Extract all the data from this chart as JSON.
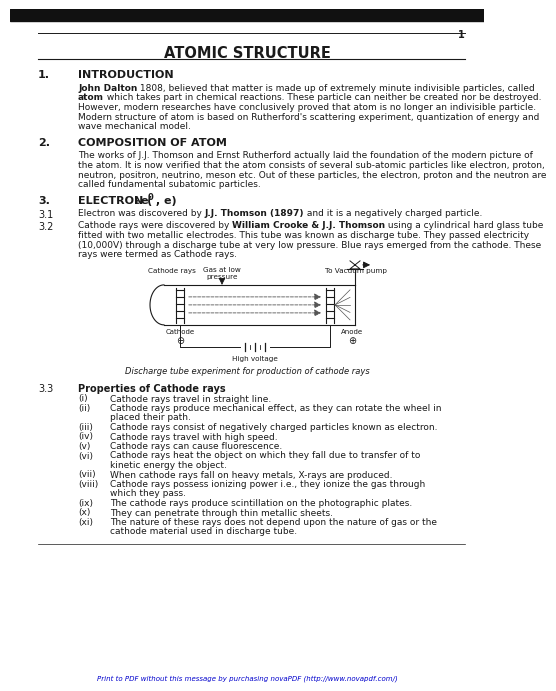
{
  "title": "ATOMIC STRUCTURE",
  "page_number": "1",
  "bg_color": "#ffffff",
  "text_color": "#1a1a1a",
  "sec1_heading": "INTRODUCTION",
  "sec1_body": [
    [
      "bold",
      "John Dalton",
      "normal",
      " 1808, believed that matter is made up of extremely minute indivisible particles, called"
    ],
    [
      "bold",
      "atom",
      "normal",
      " which takes part in chemical reactions. These particle can neither be created nor be destroyed."
    ],
    [
      "normal",
      "However, modern researches have conclusively proved that atom is no longer an indivisible particle."
    ],
    [
      "normal",
      "Modern structure of atom is based on Rutherford's scattering experiment, quantization of energy and"
    ],
    [
      "normal",
      "wave mechanical model."
    ]
  ],
  "sec2_heading": "COMPOSITION OF ATOM",
  "sec2_body": [
    "The works of J.J. Thomson and Ernst Rutherford actually laid the foundation of the modern picture of",
    "the atom. It is now verified that the atom consists of several sub-atomic particles like electron, proton,",
    "neutron, positron, neutrino, meson etc. Out of these particles, the electron, proton and the neutron are",
    "called fundamental subatomic particles."
  ],
  "sec31_text": "Electron was discovered by ",
  "sec31_bold": "J.J. Thomson (1897)",
  "sec31_rest": " and it is a negatively charged particle.",
  "sec32_lines": [
    [
      [
        "bold",
        "William Crooke & J.J. Thomson"
      ],
      [
        "normal",
        " using a cylindrical hard glass tube"
      ]
    ],
    [
      [
        "normal",
        "fitted with two metallic electrodes. This tube was known as discharge tube. They passed electricity"
      ]
    ],
    [
      [
        "normal",
        "(10,000V) through a discharge tube at very low pressure. Blue rays emerged from the cathode. These"
      ]
    ],
    [
      [
        "normal",
        "rays were termed as Cathode rays."
      ]
    ]
  ],
  "sec32_prefix": "Cathode rays were discovered by ",
  "diagram_caption": "Discharge tube experiment for production of cathode rays",
  "sec33_heading": "Properties of Cathode rays",
  "sec33_items": [
    [
      "(i)",
      "Cathode rays travel in straight line."
    ],
    [
      "(ii)",
      "Cathode rays produce mechanical effect, as they can rotate the wheel placed in their path."
    ],
    [
      "(iii)",
      "Cathode rays consist of negatively charged particles known as electron."
    ],
    [
      "(iv)",
      "Cathode rays travel with high speed."
    ],
    [
      "(v)",
      "Cathode rays can cause fluorescence."
    ],
    [
      "(vi)",
      "Cathode rays heat the object on which they fall due to transfer of kinetic energy to the object."
    ],
    [
      "(vii)",
      "When cathode rays fall on heavy metals, X-rays are produced."
    ],
    [
      "(viii)",
      "Cathode rays possess ionizing power i.e., they ionize the gas through which they pass."
    ],
    [
      "(ix)",
      "The cathode rays produce scintillation on the photographic plates."
    ],
    [
      "(x)",
      "They can penetrate through thin metallic sheets."
    ],
    [
      "(xi)",
      "The nature of these rays does not depend upon the nature of gas or the cathode material used in discharge tube."
    ]
  ],
  "footer": "Print to PDF without this message by purchasing novaPDF (http://www.novapdf.com/)"
}
